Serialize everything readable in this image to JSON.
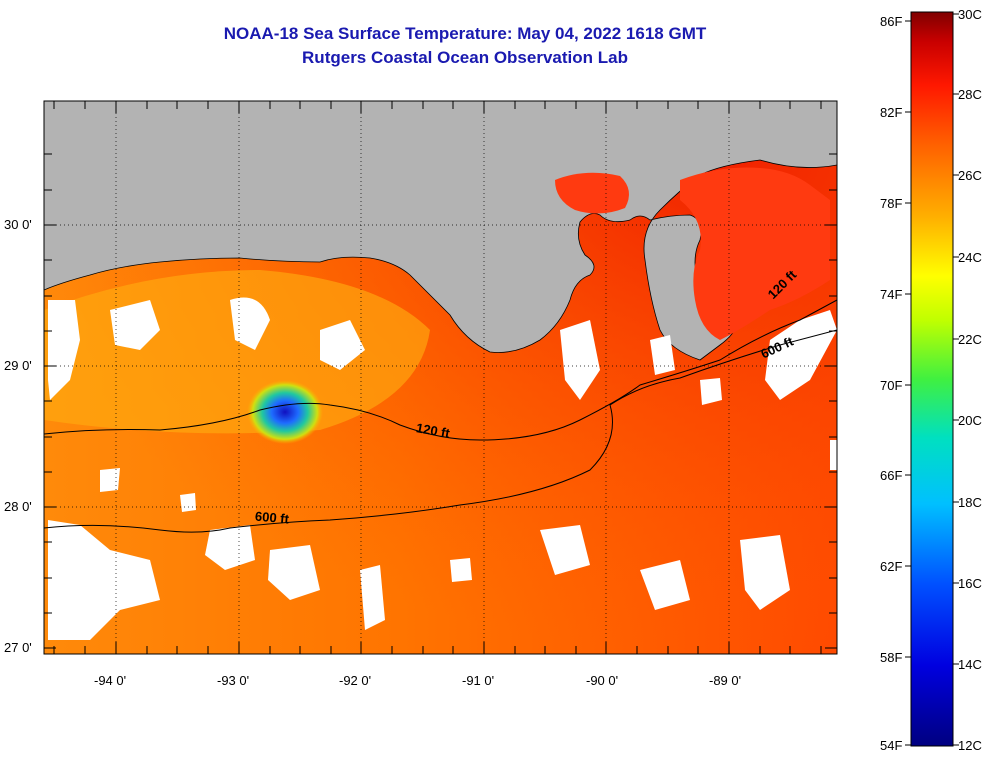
{
  "title": {
    "line1": "NOAA-18 Sea Surface Temperature:  May 04, 2022 1618 GMT",
    "line2": "Rutgers Coastal Ocean Observation Lab"
  },
  "map": {
    "lat_labels": [
      "30 0'",
      "29 0'",
      "28 0'",
      "27 0'"
    ],
    "lon_labels": [
      "-94 0'",
      "-93 0'",
      "-92 0'",
      "-91 0'",
      "-90 0'",
      "-89 0'"
    ],
    "contours": [
      "120 ft",
      "120 ft",
      "600 ft",
      "600 ft"
    ],
    "colors": {
      "land": "#b3b3b3",
      "water_warm": "#ff6a00",
      "water_hot": "#ff2a00",
      "cloud": "#ffffff"
    }
  },
  "colorbar": {
    "f_labels": [
      "86F",
      "82F",
      "78F",
      "74F",
      "70F",
      "66F",
      "62F",
      "58F",
      "54F"
    ],
    "c_labels": [
      "30C",
      "28C",
      "26C",
      "24C",
      "22C",
      "20C",
      "18C",
      "16C",
      "14C",
      "12C"
    ]
  }
}
